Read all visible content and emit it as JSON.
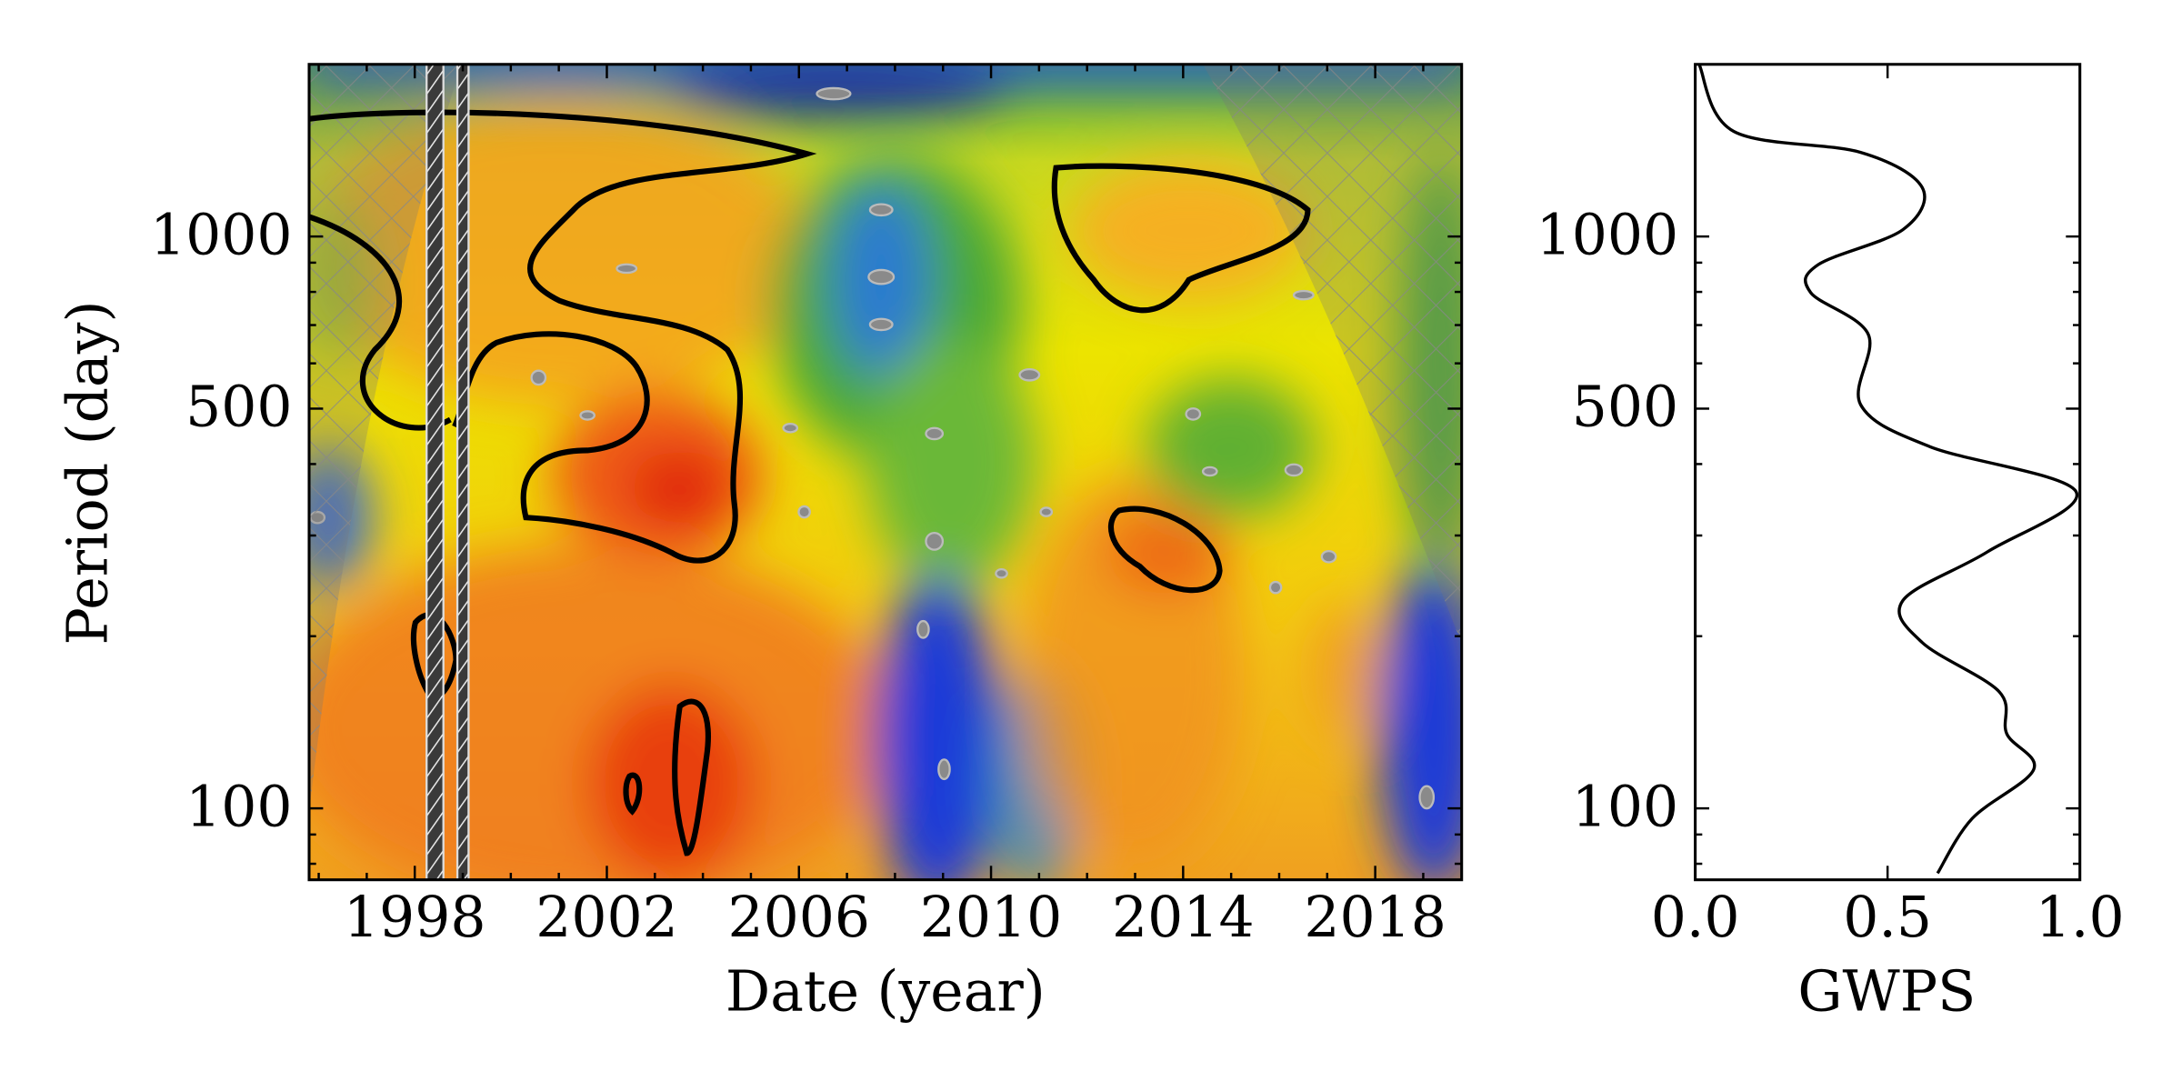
{
  "chart_data": [
    {
      "type": "heatmap",
      "xlabel": "Date (year)",
      "ylabel": "Period (day)",
      "xlim": [
        1995.8,
        2019.8
      ],
      "ylim": [
        75,
        2000
      ],
      "log_y": true,
      "xticks": [
        1998,
        2002,
        2006,
        2010,
        2014,
        2018
      ],
      "xminorticks": [
        1996,
        1997,
        1999,
        2000,
        2001,
        2003,
        2004,
        2005,
        2007,
        2008,
        2009,
        2011,
        2012,
        2013,
        2015,
        2016,
        2017,
        2019
      ],
      "yticks": [
        100,
        500,
        1000
      ],
      "yminorticks": [
        80,
        90,
        200,
        300,
        400,
        600,
        700,
        800,
        900,
        2000
      ]
    },
    {
      "type": "line",
      "xlabel": "GWPS",
      "color": "#000000",
      "values": [
        0.01,
        0.1,
        0.43,
        0.59,
        0.54,
        0.32,
        0.3,
        0.45,
        0.43,
        0.61,
        0.99,
        0.76,
        0.54,
        0.59,
        0.79,
        0.81,
        0.88,
        0.72,
        0.63
      ],
      "y": [
        2000,
        1527,
        1403,
        1218,
        1028,
        893,
        798,
        674,
        508,
        429,
        358,
        281,
        231,
        195,
        160,
        135,
        117,
        96,
        77
      ],
      "xlim": [
        0,
        1
      ],
      "ylim": [
        75,
        2000
      ],
      "log_y": true,
      "xticks": [
        {
          "value": 0,
          "label": "0.0"
        },
        {
          "value": 0.5,
          "label": "0.5"
        },
        {
          "value": 1,
          "label": "1.0"
        }
      ],
      "yticks": [
        100,
        500,
        1000
      ],
      "yminorticks": [
        80,
        90,
        200,
        300,
        400,
        600,
        700,
        800,
        900,
        2000
      ]
    }
  ]
}
